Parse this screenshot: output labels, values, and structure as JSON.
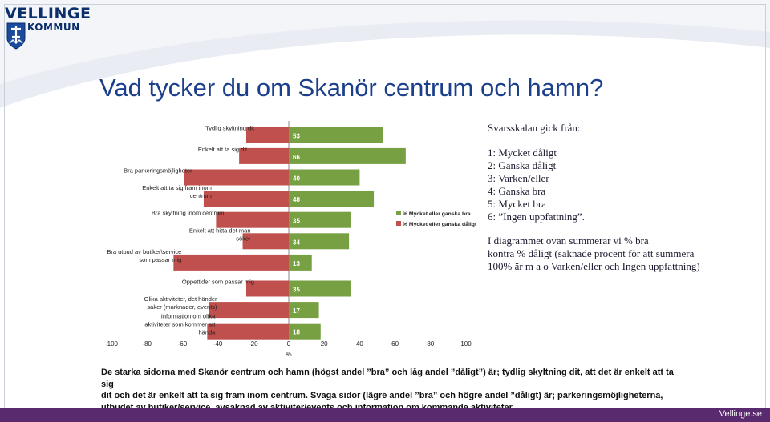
{
  "logo": {
    "line1": "VELLINGE",
    "line2": "KOMMUN"
  },
  "title": "Vad tycker du om Skanör centrum och hamn?",
  "chart_data": {
    "type": "bar",
    "orientation": "horizontal-diverging",
    "categories": [
      "Tydlig skyltning dit",
      "Enkelt att ta sig dit",
      "Bra parkeringsmöjligheter",
      "Enkelt att ta sig fram inom centrum",
      "Bra skyltning inom centrum",
      "Enkelt att hitta det man söker",
      "Bra utbud av butiker\\service som passar mig",
      "Öppettider som passar mig",
      "Olika aktiviteter, det händer saker (marknader, events)",
      "Information om olika aktiviteter som kommer att hända"
    ],
    "category_lines": [
      [
        "Tydlig skyltning dit"
      ],
      [
        "Enkelt att ta sig dit"
      ],
      [
        "Bra parkeringsmöjligheter"
      ],
      [
        "Enkelt att ta sig fram inom",
        "centrum"
      ],
      [
        "Bra skyltning inom centrum"
      ],
      [
        "Enkelt att hitta det man",
        "söker"
      ],
      [
        "Bra utbud av butiker\\service",
        "som passar mig"
      ],
      [
        "Öppettider som passar mig"
      ],
      [
        "Olika aktiviteter, det händer",
        "saker (marknader, events)"
      ],
      [
        "Information om olika",
        "aktiviteter som kommer att",
        "hända"
      ]
    ],
    "series": [
      {
        "name": "% Mycket eller ganska bra",
        "color": "#77a043",
        "values": [
          53,
          66,
          40,
          48,
          35,
          34,
          13,
          35,
          17,
          18
        ]
      },
      {
        "name": "% Mycket eller ganska dåligt",
        "color": "#c0504d",
        "values": [
          -24,
          -28,
          -59,
          -48,
          -41,
          -26,
          -65,
          -24,
          -45,
          -46
        ]
      }
    ],
    "data_labels": [
      "53",
      "66",
      "40",
      "48",
      "35",
      "34",
      "13",
      "35",
      "17",
      "18"
    ],
    "xlabel": "%",
    "xlim": [
      -100,
      100
    ],
    "xticks": [
      "-100",
      "-80",
      "-60",
      "-40",
      "-20",
      "0",
      "20",
      "40",
      "60",
      "80",
      "100"
    ],
    "legend_position": "right"
  },
  "scale": {
    "heading": "Svarsskalan gick från:",
    "items": [
      "1: Mycket dåligt",
      "2: Ganska dåligt",
      "3: Varken/eller",
      "4: Ganska bra",
      "5: Mycket bra",
      "6: ”Ingen uppfattning”."
    ]
  },
  "explanation": {
    "lines": [
      "I diagrammet ovan summerar vi % bra",
      "kontra % dåligt (saknade procent för att summera",
      "100% är m a o Varken/eller och Ingen uppfattning)"
    ]
  },
  "caption": {
    "lines": [
      "De starka sidorna med Skanör centrum och hamn (högst andel ”bra” och låg andel ”dåligt”) är; tydlig skyltning dit, att det är enkelt att ta sig",
      "dit och det är enkelt att ta sig fram inom centrum. Svaga sidor (lägre andel ”bra” och högre andel ”dåligt) är; parkeringsmöjligheterna,",
      "utbudet av butiker/service, avsaknad av aktiviter/events och information om kommande aktiviteter."
    ]
  },
  "footer": {
    "site": "Vellinge.se"
  },
  "colors": {
    "title": "#1c3f8c",
    "good": "#77a043",
    "bad": "#c0504d",
    "footer": "#5a2a6e"
  }
}
